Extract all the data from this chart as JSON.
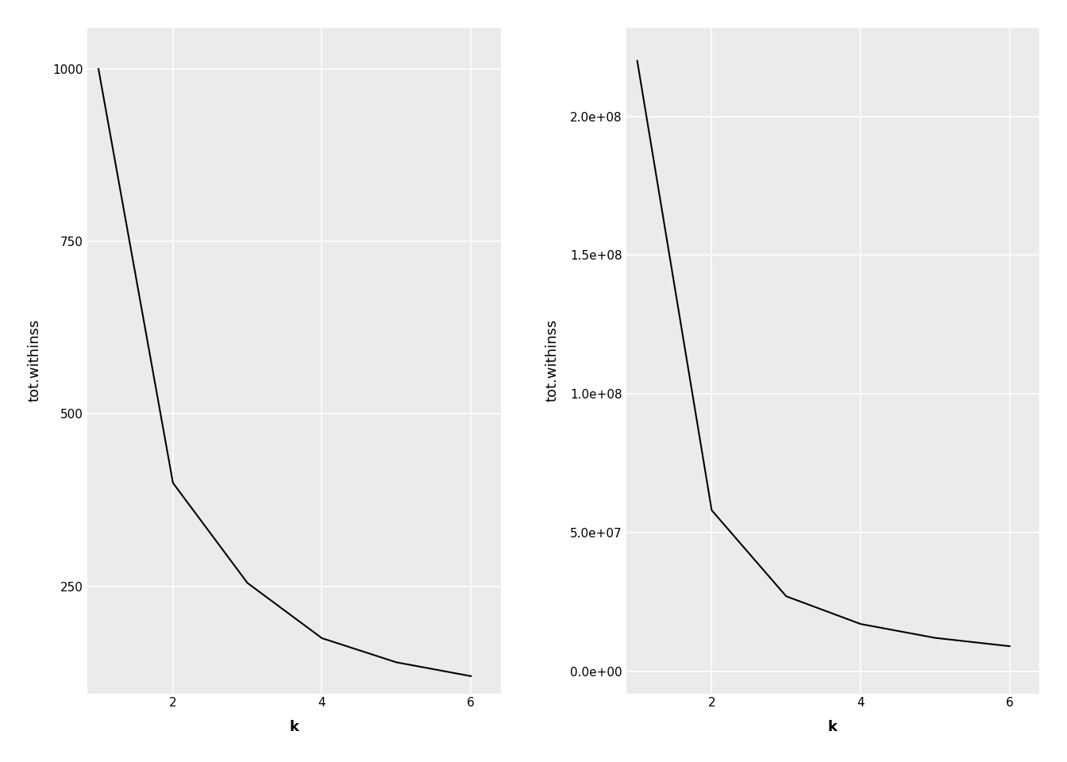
{
  "left": {
    "k": [
      1,
      2,
      3,
      4,
      5,
      6
    ],
    "tot_withinss": [
      1000,
      400,
      255,
      175,
      140,
      120
    ],
    "xlabel": "k",
    "ylabel": "tot.withinss",
    "yticks": [
      250,
      500,
      750,
      1000
    ],
    "xticks": [
      2,
      4,
      6
    ],
    "ylim": [
      95,
      1060
    ],
    "xlim": [
      0.85,
      6.4
    ]
  },
  "right": {
    "k": [
      1,
      2,
      3,
      4,
      5,
      6
    ],
    "tot_withinss": [
      220000000,
      58000000,
      27000000,
      17000000,
      12000000,
      9000000
    ],
    "xlabel": "k",
    "ylabel": "tot.withinss",
    "yticks": [
      0,
      50000000,
      100000000,
      150000000,
      200000000
    ],
    "xticks": [
      2,
      4,
      6
    ],
    "ylim": [
      -8000000,
      232000000
    ],
    "xlim": [
      0.85,
      6.4
    ]
  },
  "bg_color": "#ebebeb",
  "grid_color": "#ffffff",
  "line_color": "#000000",
  "line_width": 1.5,
  "label_fontsize": 13,
  "tick_fontsize": 11
}
